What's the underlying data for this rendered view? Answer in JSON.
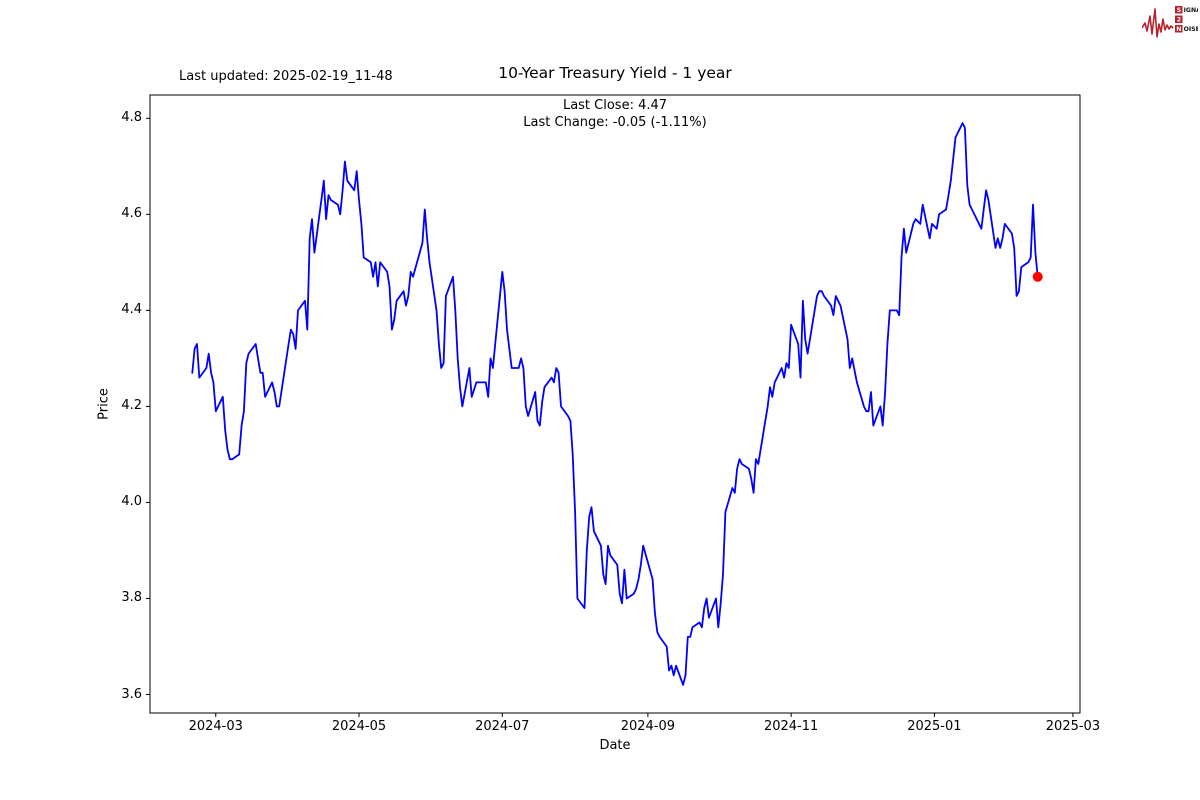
{
  "annotations": {
    "last_updated": "Last updated: 2025-02-19_11-48"
  },
  "logo": {
    "word1": "SIGNAL",
    "word2": "2",
    "word3": "NOISE",
    "color": "#b8222e"
  },
  "chart_data": {
    "type": "line",
    "title": "10-Year Treasury Yield - 1 year",
    "subtitle_line1": "Last Close: 4.47",
    "subtitle_line2": "Last Change: -0.05 (-1.11%)",
    "last_close": 4.47,
    "last_change": -0.05,
    "last_change_pct": -1.11,
    "xlabel": "Date",
    "ylabel": "Price",
    "grid": false,
    "legend": "none",
    "line_color": "#0000ff",
    "marker_color": "#ff0000",
    "axis_color": "#000000",
    "ylim": [
      3.5615,
      4.8485
    ],
    "xlim": [
      "2024-02-02",
      "2025-03-04"
    ],
    "y_ticks": [
      3.6,
      3.8,
      4.0,
      4.2,
      4.4,
      4.6,
      4.8
    ],
    "x_ticks": [
      {
        "date": "2024-03-01",
        "label": "2024-03"
      },
      {
        "date": "2024-05-01",
        "label": "2024-05"
      },
      {
        "date": "2024-07-01",
        "label": "2024-07"
      },
      {
        "date": "2024-09-01",
        "label": "2024-09"
      },
      {
        "date": "2024-11-01",
        "label": "2024-11"
      },
      {
        "date": "2025-01-01",
        "label": "2025-01"
      },
      {
        "date": "2025-03-01",
        "label": "2025-03"
      }
    ],
    "series": [
      {
        "name": "10-Year Treasury Yield",
        "points": [
          [
            "2024-02-20",
            4.27
          ],
          [
            "2024-02-21",
            4.32
          ],
          [
            "2024-02-22",
            4.33
          ],
          [
            "2024-02-23",
            4.26
          ],
          [
            "2024-02-26",
            4.28
          ],
          [
            "2024-02-27",
            4.31
          ],
          [
            "2024-02-28",
            4.27
          ],
          [
            "2024-02-29",
            4.25
          ],
          [
            "2024-03-01",
            4.19
          ],
          [
            "2024-03-04",
            4.22
          ],
          [
            "2024-03-05",
            4.15
          ],
          [
            "2024-03-06",
            4.11
          ],
          [
            "2024-03-07",
            4.09
          ],
          [
            "2024-03-08",
            4.09
          ],
          [
            "2024-03-11",
            4.1
          ],
          [
            "2024-03-12",
            4.16
          ],
          [
            "2024-03-13",
            4.19
          ],
          [
            "2024-03-14",
            4.29
          ],
          [
            "2024-03-15",
            4.31
          ],
          [
            "2024-03-18",
            4.33
          ],
          [
            "2024-03-19",
            4.3
          ],
          [
            "2024-03-20",
            4.27
          ],
          [
            "2024-03-21",
            4.27
          ],
          [
            "2024-03-22",
            4.22
          ],
          [
            "2024-03-25",
            4.25
          ],
          [
            "2024-03-26",
            4.23
          ],
          [
            "2024-03-27",
            4.2
          ],
          [
            "2024-03-28",
            4.2
          ],
          [
            "2024-04-01",
            4.33
          ],
          [
            "2024-04-02",
            4.36
          ],
          [
            "2024-04-03",
            4.35
          ],
          [
            "2024-04-04",
            4.32
          ],
          [
            "2024-04-05",
            4.4
          ],
          [
            "2024-04-08",
            4.42
          ],
          [
            "2024-04-09",
            4.36
          ],
          [
            "2024-04-10",
            4.55
          ],
          [
            "2024-04-11",
            4.59
          ],
          [
            "2024-04-12",
            4.52
          ],
          [
            "2024-04-15",
            4.63
          ],
          [
            "2024-04-16",
            4.67
          ],
          [
            "2024-04-17",
            4.59
          ],
          [
            "2024-04-18",
            4.64
          ],
          [
            "2024-04-19",
            4.63
          ],
          [
            "2024-04-22",
            4.62
          ],
          [
            "2024-04-23",
            4.6
          ],
          [
            "2024-04-24",
            4.65
          ],
          [
            "2024-04-25",
            4.71
          ],
          [
            "2024-04-26",
            4.67
          ],
          [
            "2024-04-29",
            4.65
          ],
          [
            "2024-04-30",
            4.69
          ],
          [
            "2024-05-01",
            4.63
          ],
          [
            "2024-05-02",
            4.58
          ],
          [
            "2024-05-03",
            4.51
          ],
          [
            "2024-05-06",
            4.5
          ],
          [
            "2024-05-07",
            4.47
          ],
          [
            "2024-05-08",
            4.5
          ],
          [
            "2024-05-09",
            4.45
          ],
          [
            "2024-05-10",
            4.5
          ],
          [
            "2024-05-13",
            4.48
          ],
          [
            "2024-05-14",
            4.45
          ],
          [
            "2024-05-15",
            4.36
          ],
          [
            "2024-05-16",
            4.38
          ],
          [
            "2024-05-17",
            4.42
          ],
          [
            "2024-05-20",
            4.44
          ],
          [
            "2024-05-21",
            4.41
          ],
          [
            "2024-05-22",
            4.43
          ],
          [
            "2024-05-23",
            4.48
          ],
          [
            "2024-05-24",
            4.47
          ],
          [
            "2024-05-28",
            4.54
          ],
          [
            "2024-05-29",
            4.61
          ],
          [
            "2024-05-30",
            4.55
          ],
          [
            "2024-05-31",
            4.5
          ],
          [
            "2024-06-03",
            4.4
          ],
          [
            "2024-06-04",
            4.33
          ],
          [
            "2024-06-05",
            4.28
          ],
          [
            "2024-06-06",
            4.29
          ],
          [
            "2024-06-07",
            4.43
          ],
          [
            "2024-06-10",
            4.47
          ],
          [
            "2024-06-11",
            4.4
          ],
          [
            "2024-06-12",
            4.3
          ],
          [
            "2024-06-13",
            4.24
          ],
          [
            "2024-06-14",
            4.2
          ],
          [
            "2024-06-17",
            4.28
          ],
          [
            "2024-06-18",
            4.22
          ],
          [
            "2024-06-20",
            4.25
          ],
          [
            "2024-06-21",
            4.25
          ],
          [
            "2024-06-24",
            4.25
          ],
          [
            "2024-06-25",
            4.22
          ],
          [
            "2024-06-26",
            4.3
          ],
          [
            "2024-06-27",
            4.28
          ],
          [
            "2024-06-28",
            4.33
          ],
          [
            "2024-07-01",
            4.48
          ],
          [
            "2024-07-02",
            4.44
          ],
          [
            "2024-07-03",
            4.36
          ],
          [
            "2024-07-05",
            4.28
          ],
          [
            "2024-07-08",
            4.28
          ],
          [
            "2024-07-09",
            4.3
          ],
          [
            "2024-07-10",
            4.28
          ],
          [
            "2024-07-11",
            4.2
          ],
          [
            "2024-07-12",
            4.18
          ],
          [
            "2024-07-15",
            4.23
          ],
          [
            "2024-07-16",
            4.17
          ],
          [
            "2024-07-17",
            4.16
          ],
          [
            "2024-07-18",
            4.21
          ],
          [
            "2024-07-19",
            4.24
          ],
          [
            "2024-07-22",
            4.26
          ],
          [
            "2024-07-23",
            4.25
          ],
          [
            "2024-07-24",
            4.28
          ],
          [
            "2024-07-25",
            4.27
          ],
          [
            "2024-07-26",
            4.2
          ],
          [
            "2024-07-29",
            4.18
          ],
          [
            "2024-07-30",
            4.17
          ],
          [
            "2024-07-31",
            4.1
          ],
          [
            "2024-08-01",
            3.98
          ],
          [
            "2024-08-02",
            3.8
          ],
          [
            "2024-08-05",
            3.78
          ],
          [
            "2024-08-06",
            3.9
          ],
          [
            "2024-08-07",
            3.97
          ],
          [
            "2024-08-08",
            3.99
          ],
          [
            "2024-08-09",
            3.94
          ],
          [
            "2024-08-12",
            3.91
          ],
          [
            "2024-08-13",
            3.85
          ],
          [
            "2024-08-14",
            3.83
          ],
          [
            "2024-08-15",
            3.91
          ],
          [
            "2024-08-16",
            3.89
          ],
          [
            "2024-08-19",
            3.87
          ],
          [
            "2024-08-20",
            3.81
          ],
          [
            "2024-08-21",
            3.79
          ],
          [
            "2024-08-22",
            3.86
          ],
          [
            "2024-08-23",
            3.8
          ],
          [
            "2024-08-26",
            3.81
          ],
          [
            "2024-08-27",
            3.82
          ],
          [
            "2024-08-28",
            3.84
          ],
          [
            "2024-08-29",
            3.87
          ],
          [
            "2024-08-30",
            3.91
          ],
          [
            "2024-09-03",
            3.84
          ],
          [
            "2024-09-04",
            3.77
          ],
          [
            "2024-09-05",
            3.73
          ],
          [
            "2024-09-06",
            3.72
          ],
          [
            "2024-09-09",
            3.7
          ],
          [
            "2024-09-10",
            3.65
          ],
          [
            "2024-09-11",
            3.66
          ],
          [
            "2024-09-12",
            3.64
          ],
          [
            "2024-09-13",
            3.66
          ],
          [
            "2024-09-16",
            3.62
          ],
          [
            "2024-09-17",
            3.64
          ],
          [
            "2024-09-18",
            3.72
          ],
          [
            "2024-09-19",
            3.72
          ],
          [
            "2024-09-20",
            3.74
          ],
          [
            "2024-09-23",
            3.75
          ],
          [
            "2024-09-24",
            3.74
          ],
          [
            "2024-09-25",
            3.78
          ],
          [
            "2024-09-26",
            3.8
          ],
          [
            "2024-09-27",
            3.76
          ],
          [
            "2024-09-30",
            3.8
          ],
          [
            "2024-10-01",
            3.74
          ],
          [
            "2024-10-02",
            3.79
          ],
          [
            "2024-10-03",
            3.85
          ],
          [
            "2024-10-04",
            3.98
          ],
          [
            "2024-10-07",
            4.03
          ],
          [
            "2024-10-08",
            4.02
          ],
          [
            "2024-10-09",
            4.07
          ],
          [
            "2024-10-10",
            4.09
          ],
          [
            "2024-10-11",
            4.08
          ],
          [
            "2024-10-14",
            4.07
          ],
          [
            "2024-10-15",
            4.05
          ],
          [
            "2024-10-16",
            4.02
          ],
          [
            "2024-10-17",
            4.09
          ],
          [
            "2024-10-18",
            4.08
          ],
          [
            "2024-10-21",
            4.17
          ],
          [
            "2024-10-22",
            4.2
          ],
          [
            "2024-10-23",
            4.24
          ],
          [
            "2024-10-24",
            4.22
          ],
          [
            "2024-10-25",
            4.25
          ],
          [
            "2024-10-28",
            4.28
          ],
          [
            "2024-10-29",
            4.26
          ],
          [
            "2024-10-30",
            4.29
          ],
          [
            "2024-10-31",
            4.28
          ],
          [
            "2024-11-01",
            4.37
          ],
          [
            "2024-11-04",
            4.33
          ],
          [
            "2024-11-05",
            4.26
          ],
          [
            "2024-11-06",
            4.42
          ],
          [
            "2024-11-07",
            4.34
          ],
          [
            "2024-11-08",
            4.31
          ],
          [
            "2024-11-12",
            4.43
          ],
          [
            "2024-11-13",
            4.44
          ],
          [
            "2024-11-14",
            4.44
          ],
          [
            "2024-11-15",
            4.43
          ],
          [
            "2024-11-18",
            4.41
          ],
          [
            "2024-11-19",
            4.39
          ],
          [
            "2024-11-20",
            4.43
          ],
          [
            "2024-11-21",
            4.42
          ],
          [
            "2024-11-22",
            4.41
          ],
          [
            "2024-11-25",
            4.34
          ],
          [
            "2024-11-26",
            4.28
          ],
          [
            "2024-11-27",
            4.3
          ],
          [
            "2024-11-29",
            4.25
          ],
          [
            "2024-12-02",
            4.2
          ],
          [
            "2024-12-03",
            4.19
          ],
          [
            "2024-12-04",
            4.19
          ],
          [
            "2024-12-05",
            4.23
          ],
          [
            "2024-12-06",
            4.16
          ],
          [
            "2024-12-09",
            4.2
          ],
          [
            "2024-12-10",
            4.16
          ],
          [
            "2024-12-11",
            4.23
          ],
          [
            "2024-12-12",
            4.33
          ],
          [
            "2024-12-13",
            4.4
          ],
          [
            "2024-12-16",
            4.4
          ],
          [
            "2024-12-17",
            4.39
          ],
          [
            "2024-12-18",
            4.51
          ],
          [
            "2024-12-19",
            4.57
          ],
          [
            "2024-12-20",
            4.52
          ],
          [
            "2024-12-23",
            4.58
          ],
          [
            "2024-12-24",
            4.59
          ],
          [
            "2024-12-26",
            4.58
          ],
          [
            "2024-12-27",
            4.62
          ],
          [
            "2024-12-30",
            4.55
          ],
          [
            "2024-12-31",
            4.58
          ],
          [
            "2025-01-02",
            4.57
          ],
          [
            "2025-01-03",
            4.6
          ],
          [
            "2025-01-06",
            4.61
          ],
          [
            "2025-01-07",
            4.64
          ],
          [
            "2025-01-08",
            4.67
          ],
          [
            "2025-01-10",
            4.76
          ],
          [
            "2025-01-13",
            4.79
          ],
          [
            "2025-01-14",
            4.78
          ],
          [
            "2025-01-15",
            4.66
          ],
          [
            "2025-01-16",
            4.62
          ],
          [
            "2025-01-17",
            4.61
          ],
          [
            "2025-01-21",
            4.57
          ],
          [
            "2025-01-22",
            4.61
          ],
          [
            "2025-01-23",
            4.65
          ],
          [
            "2025-01-24",
            4.63
          ],
          [
            "2025-01-27",
            4.53
          ],
          [
            "2025-01-28",
            4.55
          ],
          [
            "2025-01-29",
            4.53
          ],
          [
            "2025-01-30",
            4.55
          ],
          [
            "2025-01-31",
            4.58
          ],
          [
            "2025-02-03",
            4.56
          ],
          [
            "2025-02-04",
            4.53
          ],
          [
            "2025-02-05",
            4.43
          ],
          [
            "2025-02-06",
            4.44
          ],
          [
            "2025-02-07",
            4.49
          ],
          [
            "2025-02-10",
            4.5
          ],
          [
            "2025-02-11",
            4.51
          ],
          [
            "2025-02-12",
            4.62
          ],
          [
            "2025-02-13",
            4.52
          ],
          [
            "2025-02-14",
            4.47
          ]
        ]
      }
    ]
  }
}
